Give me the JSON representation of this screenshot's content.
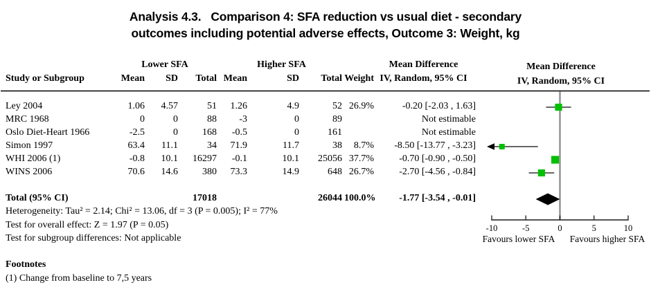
{
  "title": {
    "line1": "Analysis 4.3.   Comparison 4: SFA reduction vs usual diet - secondary",
    "line2": "outcomes including potential adverse effects, Outcome 3: Weight, kg"
  },
  "table": {
    "group_headers": {
      "lower": "Lower SFA",
      "higher": "Higher SFA",
      "md_left": "Mean Difference",
      "md_right_line1": "Mean Difference",
      "md_right_line2": "IV, Random, 95% CI"
    },
    "col_headers": {
      "study": "Study or Subgroup",
      "mean1": "Mean",
      "sd1": "SD",
      "total1": "Total",
      "mean2": "Mean",
      "sd2": "SD",
      "total2": "Total",
      "weight": "Weight",
      "ci": "IV, Random, 95% CI"
    },
    "rows": [
      {
        "study": "Ley 2004",
        "mean1": "1.06",
        "sd1": "4.57",
        "total1": "51",
        "mean2": "1.26",
        "sd2": "4.9",
        "total2": "52",
        "weight": "26.9%",
        "ci": "-0.20 [-2.03 , 1.63]"
      },
      {
        "study": "MRC 1968",
        "mean1": "0",
        "sd1": "0",
        "total1": "88",
        "mean2": "-3",
        "sd2": "0",
        "total2": "89",
        "weight": "",
        "ci": "Not estimable"
      },
      {
        "study": "Oslo Diet-Heart 1966",
        "mean1": "-2.5",
        "sd1": "0",
        "total1": "168",
        "mean2": "-0.5",
        "sd2": "0",
        "total2": "161",
        "weight": "",
        "ci": "Not estimable"
      },
      {
        "study": "Simon 1997",
        "mean1": "63.4",
        "sd1": "11.1",
        "total1": "34",
        "mean2": "71.9",
        "sd2": "11.7",
        "total2": "38",
        "weight": "8.7%",
        "ci": "-8.50 [-13.77 , -3.23]"
      },
      {
        "study": "WHI 2006 (1)",
        "mean1": "-0.8",
        "sd1": "10.1",
        "total1": "16297",
        "mean2": "-0.1",
        "sd2": "10.1",
        "total2": "25056",
        "weight": "37.7%",
        "ci": "-0.70 [-0.90 , -0.50]"
      },
      {
        "study": "WINS 2006",
        "mean1": "70.6",
        "sd1": "14.6",
        "total1": "380",
        "mean2": "73.3",
        "sd2": "14.9",
        "total2": "648",
        "weight": "26.7%",
        "ci": "-2.70 [-4.56 , -0.84]"
      }
    ],
    "total_row": {
      "label": "Total (95% CI)",
      "total1": "17018",
      "total2": "26044",
      "weight": "100.0%",
      "ci": "-1.77 [-3.54 , -0.01]"
    },
    "stats": {
      "heterogeneity": "Heterogeneity: Tau² = 2.14; Chi² = 13.06, df = 3 (P = 0.005); I² = 77%",
      "overall_effect": "Test for overall effect: Z = 1.97 (P = 0.05)",
      "subgroup_differences": "Test for subgroup differences: Not applicable"
    }
  },
  "footnotes": {
    "heading": "Footnotes",
    "item1": "(1) Change from baseline to 7,5 years"
  },
  "chart_data": {
    "type": "forest",
    "effect_measure": "Mean Difference, IV, Random, 95% CI",
    "xlim": [
      -10,
      10
    ],
    "ticks": [
      -10,
      -5,
      0,
      5,
      10
    ],
    "tick_labels": [
      "-10",
      "-5",
      "0",
      "5",
      "10"
    ],
    "favours_left": "Favours lower SFA",
    "favours_right": "Favours higher SFA",
    "marker_color": "#00c000",
    "diamond_color": "#000000",
    "zero_line_color": "#909090",
    "studies": [
      {
        "name": "Ley 2004",
        "estimate": -0.2,
        "ci_low": -2.03,
        "ci_high": 1.63,
        "weight_pct": 26.9
      },
      {
        "name": "MRC 1968",
        "estimate": null,
        "ci_low": null,
        "ci_high": null,
        "weight_pct": null,
        "note": "Not estimable"
      },
      {
        "name": "Oslo Diet-Heart 1966",
        "estimate": null,
        "ci_low": null,
        "ci_high": null,
        "weight_pct": null,
        "note": "Not estimable"
      },
      {
        "name": "Simon 1997",
        "estimate": -8.5,
        "ci_low": -13.77,
        "ci_high": -3.23,
        "weight_pct": 8.7
      },
      {
        "name": "WHI 2006 (1)",
        "estimate": -0.7,
        "ci_low": -0.9,
        "ci_high": -0.5,
        "weight_pct": 37.7
      },
      {
        "name": "WINS 2006",
        "estimate": -2.7,
        "ci_low": -4.56,
        "ci_high": -0.84,
        "weight_pct": 26.7
      }
    ],
    "total": {
      "name": "Total (95% CI)",
      "estimate": -1.77,
      "ci_low": -3.54,
      "ci_high": -0.01,
      "weight_pct": 100.0
    }
  }
}
